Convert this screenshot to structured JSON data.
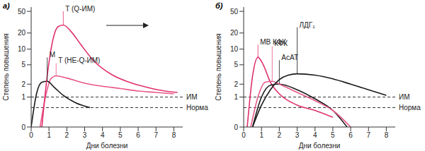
{
  "chart_data": [
    {
      "type": "line",
      "title": "а)",
      "x_label": "Дни болезни",
      "y_label": "Степень повышения",
      "xlim": [
        0,
        8.5
      ],
      "xticks": [
        0,
        1,
        2,
        3,
        4,
        5,
        6,
        7,
        8
      ],
      "ylim": [
        0,
        60
      ],
      "yticks": [
        0,
        1,
        2,
        5,
        10,
        20,
        50
      ],
      "log": "y",
      "reference_lines": [
        {
          "label": "ИМ",
          "value": 1
        },
        {
          "label": "Норма",
          "value": 0.5
        }
      ],
      "series": [
        {
          "name": "T (НЕ-Q-ИМ)",
          "color": "#e8578a",
          "x": [
            0.5,
            0.8,
            1.1,
            1.4,
            2,
            3,
            4,
            5,
            6,
            7,
            8
          ],
          "values": [
            0,
            1,
            2.6,
            3,
            2.7,
            2.1,
            1.8,
            1.6,
            1.4,
            1.3,
            1.2
          ]
        },
        {
          "name": "M",
          "color": "#1a1a1a",
          "x": [
            0,
            0.3,
            0.6,
            0.9,
            1.3,
            1.8,
            2.5,
            3.3
          ],
          "values": [
            0,
            1.2,
            2.2,
            2.3,
            1.7,
            1.1,
            0.7,
            0.5
          ]
        },
        {
          "name": "T (Q-ИМ)",
          "color": "#e0306f",
          "x": [
            0.6,
            0.9,
            1.2,
            1.5,
            1.8,
            2.2,
            2.8,
            3.5,
            4.5,
            5.5,
            6.5,
            7.5,
            8.2
          ],
          "values": [
            0,
            3,
            14,
            26,
            28,
            22,
            12,
            6,
            3.2,
            2.2,
            1.7,
            1.4,
            1.3
          ]
        }
      ]
    },
    {
      "type": "line",
      "title": "б)",
      "x_label": "Дни болезни",
      "y_label": "Степень повышения",
      "xlim": [
        0,
        8.5
      ],
      "xticks": [
        0,
        1,
        2,
        3,
        4,
        5,
        6,
        7,
        8
      ],
      "ylim": [
        0,
        60
      ],
      "yticks": [
        0,
        1,
        2,
        5,
        10,
        20,
        50
      ],
      "log": "y",
      "reference_lines": [
        {
          "label": "ИМ",
          "value": 1
        },
        {
          "label": "Норма",
          "value": 0.5
        }
      ],
      "series": [
        {
          "name": "MB КФК",
          "color": "#e0306f",
          "x": [
            0.2,
            0.5,
            0.8,
            1.1,
            1.5,
            2,
            3,
            4,
            5
          ],
          "values": [
            0,
            3,
            7,
            5,
            2.2,
            1.2,
            0.6,
            0.4,
            0.2
          ]
        },
        {
          "name": "АсАТ",
          "color": "#1a1a1a",
          "x": [
            0.5,
            1,
            1.5,
            2,
            3,
            4,
            5,
            5.8
          ],
          "values": [
            0,
            1,
            1.9,
            2,
            1.5,
            0.9,
            0.4,
            0
          ]
        },
        {
          "name": "КФК",
          "color": "#e8578a",
          "x": [
            0.4,
            0.8,
            1.2,
            1.6,
            2,
            3,
            4,
            5,
            6
          ],
          "values": [
            0,
            1,
            2.2,
            2.3,
            2,
            1.3,
            0.8,
            0.4,
            0
          ]
        },
        {
          "name": "ЛДГ₁",
          "color": "#1a1a1a",
          "x": [
            0.5,
            1,
            1.5,
            2,
            2.5,
            3,
            4,
            5,
            6,
            7,
            8
          ],
          "values": [
            0,
            0.6,
            1.5,
            2.5,
            3.1,
            3.3,
            3.1,
            2.6,
            2,
            1.5,
            1.1
          ]
        }
      ]
    }
  ]
}
